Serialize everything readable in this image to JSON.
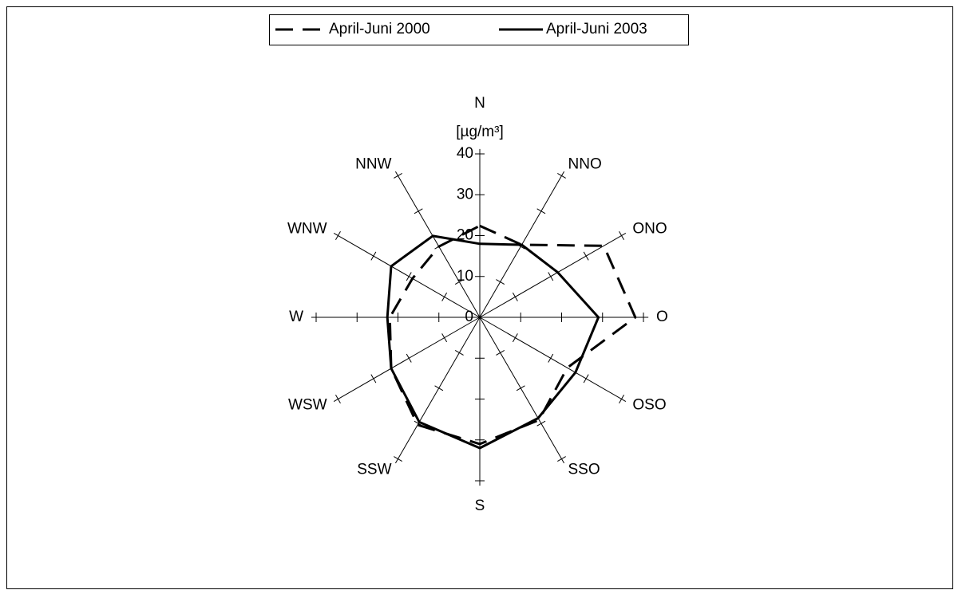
{
  "chart_data": {
    "type": "radar",
    "y_label": "[µg/m³]",
    "categories": [
      "N",
      "NNO",
      "ONO",
      "O",
      "OSO",
      "SSO",
      "S",
      "SSW",
      "WSW",
      "W",
      "WNW",
      "NNW"
    ],
    "series": [
      {
        "name": "April-Juni 2000",
        "color": "#000000",
        "style": "dashed",
        "values": [
          22.4,
          20.5,
          35,
          38,
          24.7,
          29,
          31,
          30.4,
          25,
          22,
          19,
          20
        ]
      },
      {
        "name": "April-Juni 2003",
        "color": "#000000",
        "style": "solid",
        "values": [
          18,
          20.5,
          22,
          29,
          27,
          28.5,
          32,
          29.6,
          25,
          22.6,
          25,
          23
        ]
      }
    ],
    "ylim": [
      0,
      40
    ],
    "yticks": [
      0,
      10,
      20,
      30,
      40
    ],
    "legend": "top"
  }
}
